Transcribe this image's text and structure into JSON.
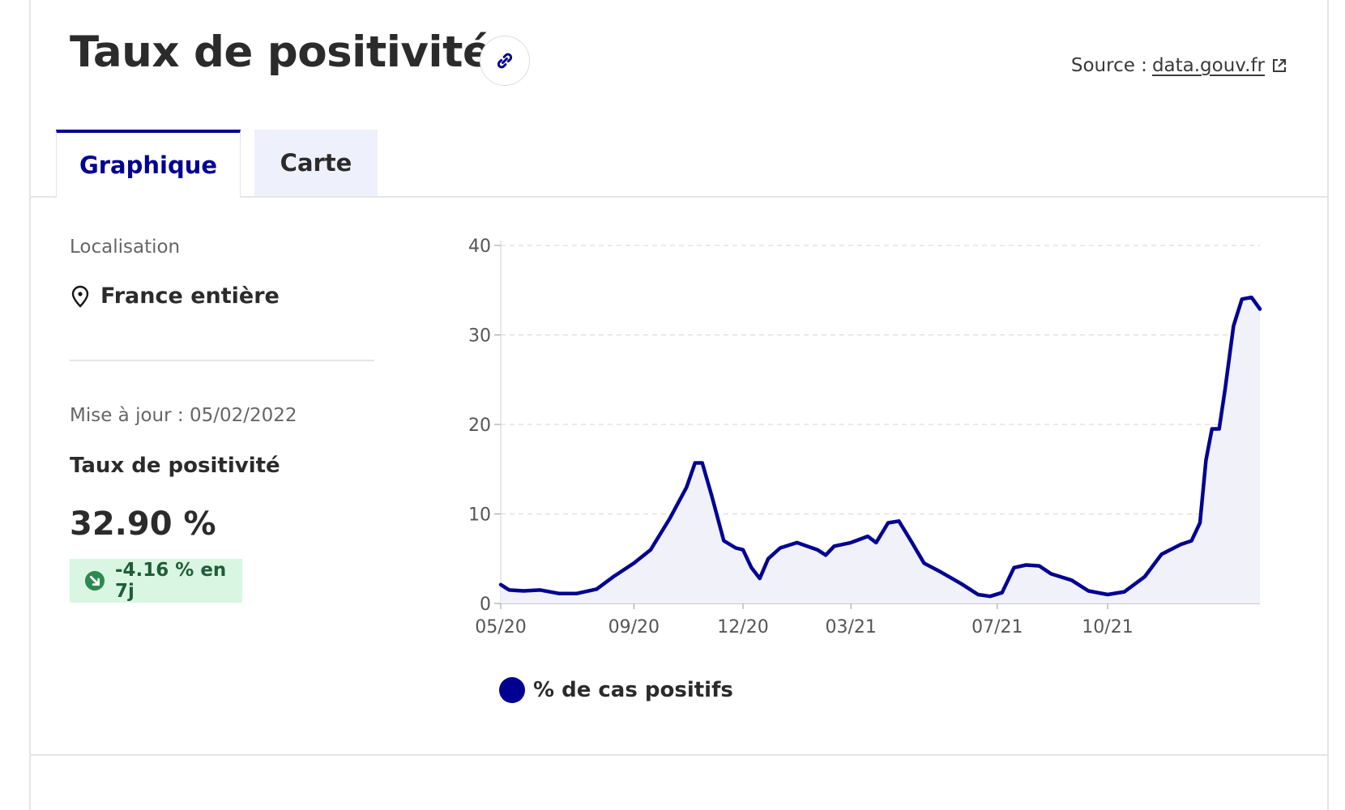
{
  "header": {
    "title": "Taux de positivité",
    "source_prefix": "Source :",
    "source_link": "data.gouv.fr"
  },
  "tabs": [
    {
      "label": "Graphique",
      "active": true
    },
    {
      "label": "Carte",
      "active": false
    }
  ],
  "sidebar": {
    "localisation_label": "Localisation",
    "localisation_value": "France entière",
    "update_label": "Mise à jour : 05/02/2022",
    "indicator_label": "Taux de positivité",
    "indicator_value": "32.90 %",
    "trend_label": "-4.16 % en 7j"
  },
  "colors": {
    "accent": "#000091",
    "area_fill": "#f0f1f9",
    "badge_bg": "#d9f6e3",
    "badge_text": "#1f5d36"
  },
  "icons": {
    "link": "link-icon",
    "external": "external-link-icon",
    "location": "map-pin-icon",
    "trend": "arrow-down-right-circle-icon"
  },
  "chart_data": {
    "type": "area",
    "title": "",
    "xlabel": "",
    "ylabel": "",
    "ylim": [
      0,
      40
    ],
    "yticks": [
      "0",
      "10",
      "20",
      "30",
      "40"
    ],
    "xticks": [
      "05/20",
      "09/20",
      "12/20",
      "03/21",
      "07/21",
      "10/21"
    ],
    "xtick_dates": [
      "2020-05-13",
      "2020-09-01",
      "2020-12-01",
      "2021-03-01",
      "2021-07-01",
      "2021-10-01"
    ],
    "grid": true,
    "legend_position": "bottom",
    "series": [
      {
        "name": "% de cas positifs",
        "points": [
          [
            "2020-05-13",
            2.1
          ],
          [
            "2020-05-20",
            1.5
          ],
          [
            "2020-06-01",
            1.4
          ],
          [
            "2020-06-15",
            1.5
          ],
          [
            "2020-07-01",
            1.1
          ],
          [
            "2020-07-15",
            1.1
          ],
          [
            "2020-08-01",
            1.6
          ],
          [
            "2020-08-15",
            3.0
          ],
          [
            "2020-09-01",
            4.5
          ],
          [
            "2020-09-15",
            6.0
          ],
          [
            "2020-10-01",
            9.5
          ],
          [
            "2020-10-15",
            13.0
          ],
          [
            "2020-10-22",
            15.7
          ],
          [
            "2020-10-28",
            15.7
          ],
          [
            "2020-11-05",
            12.0
          ],
          [
            "2020-11-15",
            7.0
          ],
          [
            "2020-11-25",
            6.2
          ],
          [
            "2020-12-01",
            6.0
          ],
          [
            "2020-12-08",
            4.0
          ],
          [
            "2020-12-15",
            2.8
          ],
          [
            "2020-12-22",
            5.0
          ],
          [
            "2021-01-01",
            6.2
          ],
          [
            "2021-01-15",
            6.8
          ],
          [
            "2021-02-01",
            6.0
          ],
          [
            "2021-02-08",
            5.4
          ],
          [
            "2021-02-15",
            6.4
          ],
          [
            "2021-03-01",
            6.8
          ],
          [
            "2021-03-15",
            7.5
          ],
          [
            "2021-03-22",
            6.8
          ],
          [
            "2021-04-01",
            9.0
          ],
          [
            "2021-04-10",
            9.2
          ],
          [
            "2021-04-20",
            7.0
          ],
          [
            "2021-05-01",
            4.5
          ],
          [
            "2021-05-15",
            3.5
          ],
          [
            "2021-06-01",
            2.2
          ],
          [
            "2021-06-15",
            1.0
          ],
          [
            "2021-06-25",
            0.8
          ],
          [
            "2021-07-05",
            1.2
          ],
          [
            "2021-07-15",
            4.0
          ],
          [
            "2021-07-25",
            4.3
          ],
          [
            "2021-08-05",
            4.2
          ],
          [
            "2021-08-15",
            3.3
          ],
          [
            "2021-09-01",
            2.6
          ],
          [
            "2021-09-15",
            1.4
          ],
          [
            "2021-10-01",
            1.0
          ],
          [
            "2021-10-15",
            1.3
          ],
          [
            "2021-11-01",
            3.0
          ],
          [
            "2021-11-15",
            5.5
          ],
          [
            "2021-12-01",
            6.6
          ],
          [
            "2021-12-10",
            7.0
          ],
          [
            "2021-12-17",
            9.0
          ],
          [
            "2021-12-22",
            16.0
          ],
          [
            "2021-12-27",
            19.5
          ],
          [
            "2022-01-02",
            19.5
          ],
          [
            "2022-01-07",
            24.0
          ],
          [
            "2022-01-14",
            31.0
          ],
          [
            "2022-01-21",
            34.0
          ],
          [
            "2022-01-29",
            34.2
          ],
          [
            "2022-02-05",
            32.9
          ]
        ]
      }
    ]
  }
}
